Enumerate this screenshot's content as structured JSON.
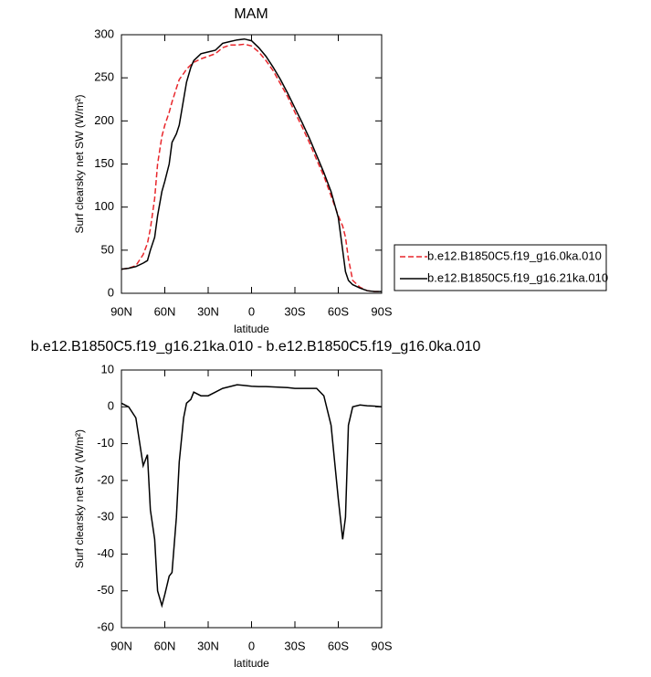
{
  "chart_data": [
    {
      "type": "line",
      "title": "MAM",
      "xlabel": "latitude",
      "ylabel": "Surf clearsky net SW (W/m²)",
      "x": [
        90,
        85,
        80,
        75,
        72,
        70,
        67,
        65,
        62,
        60,
        57,
        55,
        52,
        50,
        47,
        45,
        42,
        40,
        35,
        30,
        25,
        20,
        15,
        10,
        5,
        0,
        -5,
        -10,
        -15,
        -20,
        -25,
        -30,
        -35,
        -40,
        -45,
        -50,
        -55,
        -60,
        -63,
        -65,
        -67,
        -70,
        -75,
        -80,
        -85,
        -90
      ],
      "series": [
        {
          "name": "b.e12.B1850C5.f19_g16.0ka.010",
          "color": "#e8262b",
          "dash": true,
          "values": [
            28,
            29,
            32,
            45,
            58,
            75,
            110,
            150,
            182,
            195,
            210,
            222,
            238,
            248,
            255,
            260,
            265,
            268,
            272,
            275,
            278,
            285,
            288,
            288,
            289,
            287,
            280,
            270,
            258,
            243,
            228,
            210,
            193,
            175,
            155,
            136,
            113,
            90,
            78,
            65,
            40,
            15,
            7,
            3,
            2,
            2
          ]
        },
        {
          "name": "b.e12.B1850C5.f19_g16.21ka.010",
          "color": "#000000",
          "dash": false,
          "values": [
            28,
            29,
            31,
            35,
            38,
            50,
            65,
            90,
            118,
            130,
            150,
            175,
            185,
            195,
            225,
            245,
            262,
            270,
            278,
            280,
            282,
            290,
            292,
            294,
            295,
            293,
            285,
            275,
            262,
            248,
            232,
            215,
            198,
            180,
            160,
            140,
            118,
            88,
            50,
            25,
            15,
            10,
            6,
            3,
            2,
            2
          ]
        }
      ],
      "xlim": [
        90,
        -90
      ],
      "xticks": [
        {
          "value": 90,
          "label": "90N"
        },
        {
          "value": 60,
          "label": "60N"
        },
        {
          "value": 30,
          "label": "30N"
        },
        0,
        {
          "value": -30,
          "label": "30S"
        },
        {
          "value": -60,
          "label": "60S"
        },
        {
          "value": -90,
          "label": "90S"
        }
      ],
      "ylim": [
        0,
        300
      ],
      "yticks": [
        0,
        50,
        100,
        150,
        200,
        250,
        300
      ],
      "legend": "right"
    },
    {
      "type": "line",
      "title": "b.e12.B1850C5.f19_g16.21ka.010 - b.e12.B1850C5.f19_g16.0ka.010",
      "xlabel": "latitude",
      "ylabel": "Surf clearsky net SW (W/m²)",
      "x": [
        90,
        85,
        80,
        75,
        72,
        70,
        67,
        65,
        62,
        60,
        57,
        55,
        52,
        50,
        47,
        45,
        42,
        40,
        35,
        30,
        25,
        20,
        15,
        10,
        5,
        0,
        -5,
        -10,
        -15,
        -20,
        -25,
        -30,
        -35,
        -40,
        -45,
        -50,
        -55,
        -60,
        -63,
        -65,
        -67,
        -70,
        -75,
        -80,
        -85,
        -90
      ],
      "series": [
        {
          "color": "#000000",
          "dash": false,
          "values": [
            1,
            0,
            -3,
            -16,
            -13,
            -28,
            -36,
            -50,
            -54,
            -51,
            -46,
            -45,
            -30,
            -15,
            -3,
            1,
            2,
            4,
            3,
            3,
            4,
            5,
            5.5,
            6,
            5.8,
            5.6,
            5.5,
            5.5,
            5.4,
            5.3,
            5.2,
            5,
            5,
            5,
            5,
            3,
            -5,
            -25,
            -36,
            -30,
            -5,
            0,
            0.5,
            0.3,
            0.2,
            0
          ]
        }
      ],
      "xlim": [
        90,
        -90
      ],
      "xticks": [
        {
          "value": 90,
          "label": "90N"
        },
        {
          "value": 60,
          "label": "60N"
        },
        {
          "value": 30,
          "label": "30N"
        },
        0,
        {
          "value": -30,
          "label": "30S"
        },
        {
          "value": -60,
          "label": "60S"
        },
        {
          "value": -90,
          "label": "90S"
        }
      ],
      "ylim": [
        -60,
        10
      ],
      "yticks": [
        -60,
        -50,
        -40,
        -30,
        -20,
        -10,
        0,
        10
      ]
    }
  ]
}
